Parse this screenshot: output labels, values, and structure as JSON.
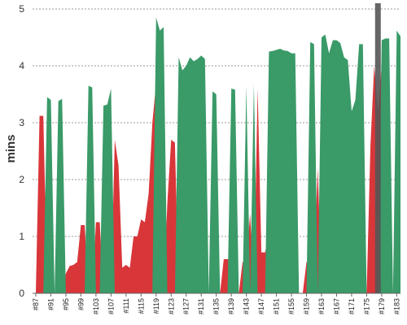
{
  "chart_data": {
    "type": "area",
    "ylabel": "mins",
    "ylim": [
      0,
      5
    ],
    "yticks": [
      0,
      1,
      2,
      3,
      4,
      5
    ],
    "grid": true,
    "x_first": 87,
    "x_last": 184,
    "xtick_labels": [
      "#87",
      "#91",
      "#95",
      "#99",
      "#103",
      "#107",
      "#111",
      "#115",
      "#119",
      "#123",
      "#127",
      "#131",
      "#135",
      "#139",
      "#143",
      "#147",
      "#151",
      "#155",
      "#159",
      "#163",
      "#167",
      "#171",
      "#175",
      "#179",
      "#183"
    ],
    "series": [
      {
        "color": "#d9363a",
        "x": [
          87,
          88,
          89,
          90,
          91,
          92,
          93,
          94,
          95,
          96,
          97,
          98,
          99,
          100,
          101,
          102,
          103,
          104,
          105,
          106,
          107,
          108,
          109,
          110,
          111,
          112,
          113,
          114,
          115,
          116,
          117,
          118,
          119,
          120,
          121,
          122,
          123,
          124,
          125,
          126,
          127,
          128,
          129,
          130,
          131,
          132,
          133,
          134,
          135,
          136,
          137,
          138,
          139,
          140,
          141,
          142,
          143,
          144,
          145,
          146,
          147,
          148,
          149,
          150,
          151,
          152,
          153,
          154,
          155,
          156,
          157,
          158,
          159,
          160,
          161,
          162,
          163,
          164,
          165,
          166,
          167,
          168,
          169,
          170,
          171,
          172,
          173,
          174,
          175,
          176,
          177,
          178,
          179,
          180,
          181,
          182,
          183,
          184
        ],
        "values": [
          0,
          3.12,
          3.12,
          0.2,
          0,
          0,
          0,
          0,
          0.35,
          0.48,
          0.5,
          0.55,
          1.2,
          1.2,
          0,
          0,
          1.25,
          1.25,
          0,
          0,
          0,
          2.7,
          2.25,
          0.45,
          0.5,
          0.45,
          1.0,
          1.0,
          1.3,
          1.25,
          1.75,
          3.0,
          3.7,
          2.5,
          0,
          1.6,
          2.7,
          2.65,
          0,
          0,
          0,
          0,
          0,
          0,
          0,
          0,
          0,
          0,
          1.5,
          0,
          0.6,
          0.6,
          0.6,
          0,
          0,
          0.55,
          0.52,
          1.4,
          0,
          3.6,
          0.72,
          0.72,
          1.05,
          0,
          0,
          0,
          0,
          0,
          0,
          0,
          0,
          0,
          0.55,
          0.52,
          0.55,
          2.2,
          0,
          0.85,
          0.85,
          3.1,
          0,
          0,
          0,
          0,
          0,
          3.5,
          0,
          0,
          0,
          2.6,
          4.0,
          3.2,
          4.0,
          4.3,
          0,
          0,
          1.5,
          1.2
        ]
      },
      {
        "color": "#3a9a68",
        "x": [
          87,
          88,
          89,
          90,
          91,
          92,
          93,
          94,
          95,
          96,
          97,
          98,
          99,
          100,
          101,
          102,
          103,
          104,
          105,
          106,
          107,
          108,
          109,
          110,
          111,
          112,
          113,
          114,
          115,
          116,
          117,
          118,
          119,
          120,
          121,
          122,
          123,
          124,
          125,
          126,
          127,
          128,
          129,
          130,
          131,
          132,
          133,
          134,
          135,
          136,
          137,
          138,
          139,
          140,
          141,
          142,
          143,
          144,
          145,
          146,
          147,
          148,
          149,
          150,
          151,
          152,
          153,
          154,
          155,
          156,
          157,
          158,
          159,
          160,
          161,
          162,
          163,
          164,
          165,
          166,
          167,
          168,
          169,
          170,
          171,
          172,
          173,
          174,
          175,
          176,
          177,
          178,
          179,
          180,
          181,
          182,
          183,
          184
        ],
        "values": [
          0,
          0,
          0,
          3.45,
          3.4,
          0,
          3.38,
          3.42,
          0,
          0,
          0,
          0,
          0,
          0,
          3.65,
          3.62,
          0,
          0,
          3.3,
          3.32,
          3.6,
          0,
          0,
          0,
          0,
          0,
          0,
          0,
          0,
          0,
          0,
          0,
          4.85,
          4.62,
          4.68,
          0,
          0,
          0,
          4.15,
          3.92,
          4.0,
          4.15,
          4.08,
          4.12,
          4.18,
          4.12,
          0,
          3.55,
          3.5,
          0,
          0,
          0,
          3.6,
          3.58,
          0,
          0,
          3.65,
          0,
          3.68,
          0,
          0,
          0,
          4.25,
          4.26,
          4.28,
          4.3,
          4.27,
          4.26,
          4.22,
          4.22,
          0,
          0,
          0,
          4.42,
          4.38,
          0,
          4.5,
          4.55,
          4.22,
          4.45,
          4.45,
          4.4,
          4.15,
          4.1,
          3.2,
          3.4,
          4.38,
          4.38,
          0,
          0,
          0,
          0,
          4.45,
          4.48,
          4.48,
          0,
          4.62,
          4.52
        ]
      }
    ],
    "marker": {
      "x": 178,
      "color": "#555555"
    }
  }
}
